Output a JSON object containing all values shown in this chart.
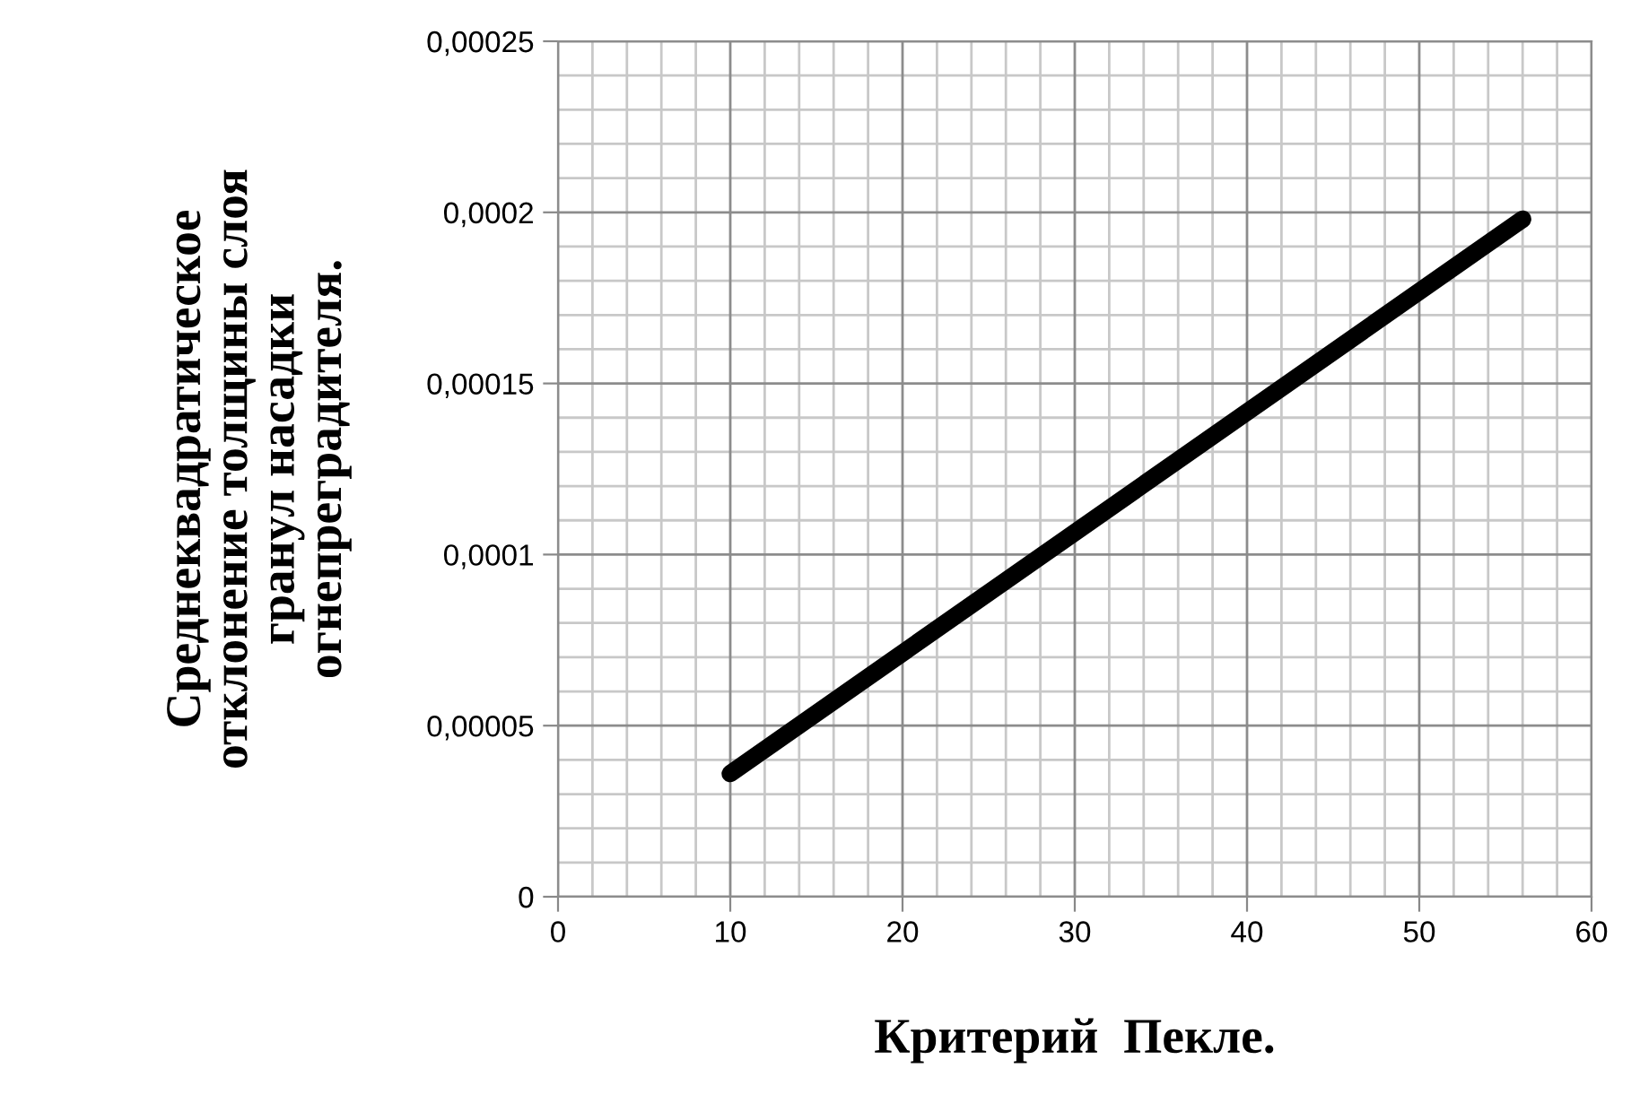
{
  "chart_data": {
    "type": "line",
    "xlabel": "Критерий  Пекле.",
    "ylabel": "Среднеквадратическое\nотклонение толщины слоя\nгранул насадки\nогнепреградителя.",
    "x": [
      10,
      56
    ],
    "series": [
      {
        "color": "#000000",
        "values": [
          3.6e-05,
          0.000198
        ]
      }
    ],
    "xlim": [
      0,
      60
    ],
    "xticks": [
      0,
      10,
      20,
      30,
      40,
      50,
      60
    ],
    "ylim": [
      0,
      0.00025
    ],
    "yticks": [
      0,
      {
        "value": 5e-05,
        "label": "0,00005"
      },
      {
        "value": 0.0001,
        "label": "0,0001"
      },
      {
        "value": 0.00015,
        "label": "0,00015"
      },
      {
        "value": 0.0002,
        "label": "0,0002"
      },
      {
        "value": 0.00025,
        "label": "0,00025"
      }
    ],
    "grid": true,
    "marker": "none",
    "line_style": "solid",
    "legend": false
  }
}
